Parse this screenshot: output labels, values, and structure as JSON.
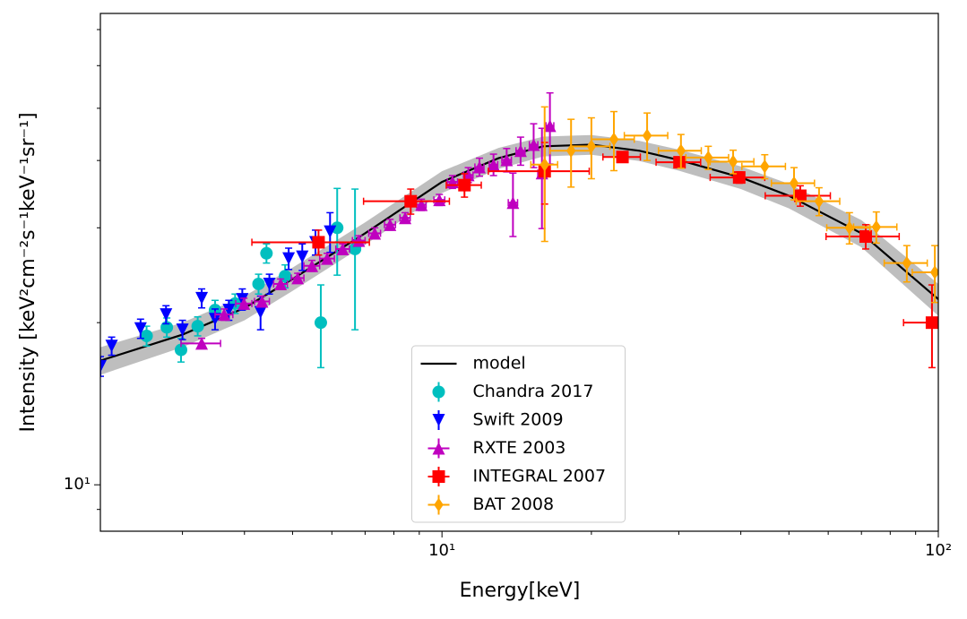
{
  "chart_data": {
    "type": "scatter",
    "xlabel": "Energy[keV]",
    "ylabel": "Intensity [keV²cm⁻²s⁻¹keV⁻¹sr⁻¹]",
    "xscale": "log",
    "yscale": "log",
    "xlim": [
      2.05,
      100
    ],
    "ylim": [
      8.2,
      75
    ],
    "xticks": [
      {
        "value": 10,
        "label": "10¹"
      },
      {
        "value": 100,
        "label": "10²"
      }
    ],
    "yticks": [
      {
        "value": 10,
        "label": "10¹"
      }
    ],
    "xminorticks": [
      3,
      4,
      5,
      6,
      7,
      8,
      9,
      20,
      30,
      40,
      50,
      60,
      70,
      80,
      90
    ],
    "yminorticks": [
      9,
      20,
      30,
      40,
      50,
      60,
      70
    ],
    "legend": "lower center",
    "model": {
      "name": "model",
      "color": "#000000",
      "x": [
        2.05,
        3,
        4,
        5,
        7,
        10,
        13,
        16,
        20,
        25,
        30,
        40,
        50,
        70,
        100
      ],
      "values": [
        17.0,
        19.0,
        21.3,
        24.1,
        29.3,
        36.5,
        40.4,
        42.5,
        42.8,
        41.7,
        40.1,
        37.2,
        34.4,
        29.3,
        22.1
      ],
      "band_color": "#b3b3b3",
      "band_lower": [
        16.0,
        18.0,
        20.2,
        22.9,
        27.9,
        34.8,
        38.6,
        40.7,
        41.0,
        39.9,
        38.3,
        35.4,
        32.6,
        27.6,
        20.6
      ],
      "band_upper": [
        18.0,
        20.0,
        22.4,
        25.3,
        30.7,
        38.2,
        42.2,
        44.3,
        44.6,
        43.5,
        41.9,
        39.0,
        36.2,
        31.0,
        23.6
      ]
    },
    "series": [
      {
        "name": "Chandra 2017",
        "color": "#00bfbf",
        "marker": "circle",
        "x": [
          2.54,
          2.79,
          2.98,
          3.22,
          3.49,
          3.83,
          4.27,
          4.43,
          4.83,
          5.7,
          6.15,
          6.68
        ],
        "values": [
          18.9,
          19.6,
          17.8,
          19.7,
          21.1,
          21.7,
          23.6,
          26.9,
          24.4,
          20.0,
          30.0,
          27.4
        ],
        "yerr": [
          0.8,
          0.8,
          0.9,
          0.8,
          0.9,
          0.9,
          1.0,
          1.1,
          1.2,
          3.5,
          5.5,
          8.0
        ]
      },
      {
        "name": "Swift 2009",
        "color": "#0000ff",
        "marker": "triangle-down",
        "x": [
          2.05,
          2.16,
          2.47,
          2.78,
          3.0,
          3.28,
          3.49,
          3.72,
          3.96,
          4.31,
          4.49,
          4.91,
          5.23,
          5.56,
          5.95
        ],
        "values": [
          16.6,
          18.1,
          19.5,
          20.7,
          19.4,
          22.2,
          20.3,
          21.1,
          22.1,
          20.9,
          23.6,
          26.3,
          26.5,
          28.2,
          29.5
        ],
        "yerr": [
          0.7,
          0.7,
          0.8,
          0.8,
          0.8,
          0.9,
          0.9,
          0.9,
          1.0,
          1.5,
          1.0,
          1.2,
          1.5,
          1.5,
          2.5
        ]
      },
      {
        "name": "RXTE 2003",
        "color": "#bf00bf",
        "marker": "triangle-up",
        "x": [
          3.28,
          3.64,
          3.99,
          4.34,
          4.73,
          5.12,
          5.47,
          5.87,
          6.31,
          6.8,
          7.32,
          7.86,
          8.43,
          9.09,
          9.88,
          10.5,
          11.3,
          11.9,
          12.7,
          13.5,
          13.9,
          14.4,
          15.3,
          15.9,
          16.5
        ],
        "values": [
          18.3,
          20.7,
          21.7,
          21.9,
          23.6,
          24.2,
          25.5,
          26.3,
          27.4,
          28.4,
          29.3,
          30.4,
          31.3,
          33.1,
          33.8,
          36.5,
          37.6,
          38.9,
          39.3,
          40.1,
          33.4,
          41.7,
          42.8,
          37.9,
          46.4
        ],
        "yerr": [
          0.4,
          0.5,
          0.5,
          0.5,
          0.5,
          0.5,
          0.6,
          0.6,
          0.6,
          0.6,
          0.7,
          0.7,
          0.7,
          0.8,
          0.8,
          1.0,
          1.2,
          1.5,
          1.8,
          2.0,
          4.5,
          2.5,
          4.0,
          8.0,
          7.0
        ],
        "xerr": [
          0.3,
          0.15,
          0.15,
          0.15,
          0.15,
          0.15,
          0.2,
          0.2,
          0.2,
          0.2,
          0.2,
          0.2,
          0.2,
          0.2,
          0.25,
          0.25,
          0.25,
          0.25,
          0.25,
          0.3,
          0.3,
          0.3,
          0.3,
          0.3,
          0.3
        ]
      },
      {
        "name": "INTEGRAL 2007",
        "color": "#ff0000",
        "marker": "square",
        "x": [
          5.64,
          8.65,
          11.1,
          16.1,
          23.1,
          30.1,
          39.7,
          52.7,
          71.4,
          97.1
        ],
        "values": [
          28.2,
          33.6,
          36.0,
          38.2,
          40.6,
          39.7,
          37.2,
          34.4,
          28.9,
          20.0
        ],
        "yerr": [
          1.5,
          1.8,
          1.8,
          5.0,
          0.8,
          0.8,
          0.9,
          1.5,
          1.5,
          3.5
        ],
        "xerr": [
          1.5,
          1.7,
          0.9,
          3.7,
          2.0,
          3.1,
          5.0,
          7.9,
          12.0,
          12.0
        ]
      },
      {
        "name": "BAT 2008",
        "color": "#ffa500",
        "marker": "diamond",
        "x": [
          16.1,
          18.2,
          20.0,
          22.2,
          25.9,
          30.3,
          34.4,
          38.6,
          44.7,
          51.2,
          57.5,
          66.2,
          75.0,
          86.4,
          98.4
        ],
        "values": [
          39.3,
          41.7,
          42.5,
          43.8,
          44.5,
          41.7,
          40.5,
          39.8,
          39.0,
          36.3,
          33.6,
          30.0,
          30.1,
          25.8,
          24.8
        ],
        "yerr": [
          11.0,
          6.0,
          5.5,
          5.5,
          4.5,
          3.0,
          2.0,
          2.0,
          2.0,
          2.5,
          2.0,
          2.0,
          2.0,
          2.0,
          3.0
        ],
        "xerr": [
          1.0,
          1.7,
          1.8,
          2.2,
          2.6,
          3.0,
          3.4,
          3.9,
          4.5,
          5.1,
          5.8,
          6.6,
          7.5,
          8.6,
          9.8
        ]
      }
    ]
  }
}
